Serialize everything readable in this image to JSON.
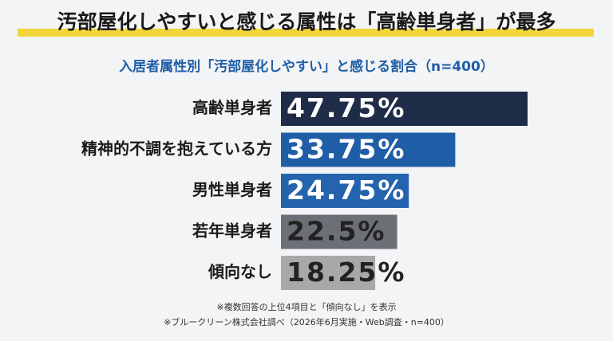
{
  "chart_data": {
    "type": "bar",
    "orientation": "horizontal",
    "title": "汚部屋化しやすいと感じる属性は「高齢単身者」が最多",
    "subtitle": "入居者属性別「汚部屋化しやすい」と感じる割合（n=400）",
    "categories": [
      "高齢単身者",
      "精神的不調を抱えている方",
      "男性単身者",
      "若年単身者",
      "傾向なし"
    ],
    "values": [
      47.75,
      33.75,
      24.75,
      22.5,
      18.25
    ],
    "value_labels": [
      "47.75%",
      "33.75%",
      "24.75%",
      "22.5%",
      "18.25%"
    ],
    "colors": [
      "#1f2c48",
      "#1f5ea6",
      "#2463ad",
      "#6c6f75",
      "#a9a7aa"
    ],
    "notes": [
      "※複数回答の上位4項目と「傾向なし」を表示",
      "※ブルークリーン株式会社調べ（2026年6月実施・Web調査・n=400）"
    ]
  }
}
